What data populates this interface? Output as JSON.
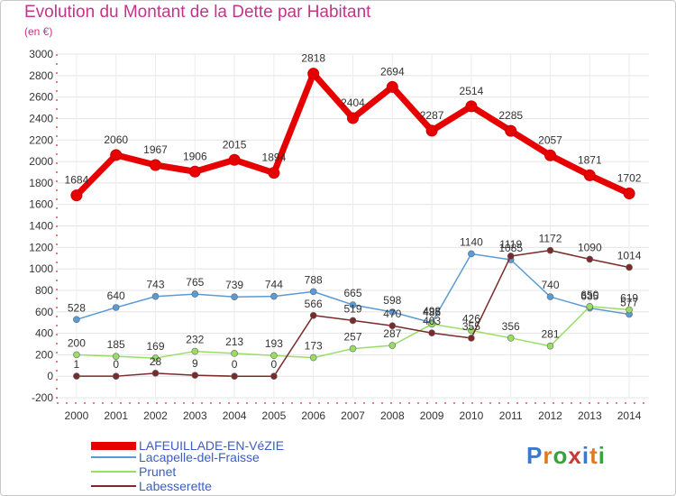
{
  "title": "Evolution du Montant de la Dette par Habitant",
  "subtitle": "(en €)",
  "logo": {
    "text": "Proxiti",
    "colors": [
      "#3a7ac8",
      "#e07a1a",
      "#3aa040",
      "#c83a3a",
      "#3a7ac8",
      "#e07a1a",
      "#3aa040"
    ]
  },
  "chart_data": {
    "type": "line",
    "title": "Evolution du Montant de la Dette par Habitant",
    "subtitle": "(en €)",
    "x": [
      "2000",
      "2001",
      "2002",
      "2003",
      "2004",
      "2005",
      "2006",
      "2007",
      "2008",
      "2009",
      "2010",
      "2011",
      "2012",
      "2013",
      "2014"
    ],
    "ylim": [
      -200,
      3000
    ],
    "yticks": [
      -200,
      0,
      200,
      400,
      600,
      800,
      1000,
      1200,
      1400,
      1600,
      1800,
      2000,
      2200,
      2400,
      2600,
      2800,
      3000
    ],
    "grid": true,
    "legend": "bottom-left",
    "series": [
      {
        "name": "LAFEUILLADE-EN-VéZIE",
        "color": "#e60000",
        "values": [
          1684,
          2060,
          1967,
          1906,
          2015,
          1894,
          2818,
          2404,
          2694,
          2287,
          2514,
          2285,
          2057,
          1871,
          1702
        ]
      },
      {
        "name": "Lacapelle-del-Fraisse",
        "color": "#5b9bd5",
        "values": [
          528,
          640,
          743,
          765,
          739,
          744,
          788,
          665,
          598,
          498,
          1140,
          1085,
          740,
          635,
          577
        ]
      },
      {
        "name": "Prunet",
        "color": "#99dd66",
        "values": [
          200,
          185,
          169,
          232,
          213,
          193,
          173,
          257,
          287,
          485,
          426,
          356,
          281,
          650,
          619
        ]
      },
      {
        "name": "Labesserette",
        "color": "#7a2a2a",
        "values": [
          1,
          0,
          28,
          9,
          0,
          0,
          566,
          519,
          470,
          403,
          355,
          1119,
          1172,
          1090,
          1014
        ]
      }
    ]
  }
}
